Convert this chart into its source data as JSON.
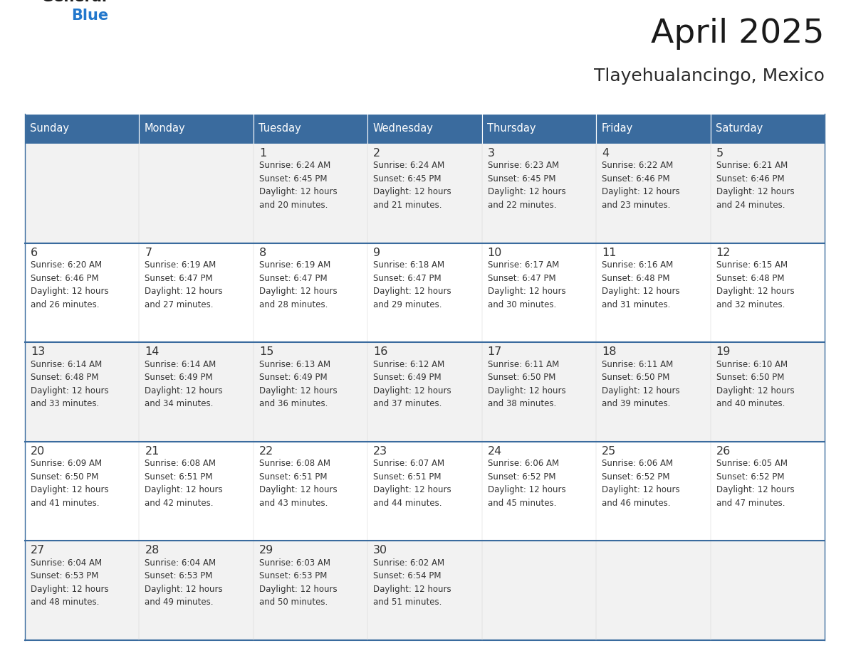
{
  "title": "April 2025",
  "subtitle": "Tlayehualancingo, Mexico",
  "header_color": "#3a6b9e",
  "header_text_color": "#ffffff",
  "cell_bg_even": "#f2f2f2",
  "cell_bg_odd": "#ffffff",
  "row_border_color": "#3a6b9e",
  "text_color": "#333333",
  "days_of_week": [
    "Sunday",
    "Monday",
    "Tuesday",
    "Wednesday",
    "Thursday",
    "Friday",
    "Saturday"
  ],
  "logo_general_color": "#1a1a1a",
  "logo_blue_color": "#2277cc",
  "title_color": "#1a1a1a",
  "subtitle_color": "#2a2a2a",
  "weeks": [
    [
      {
        "day": "",
        "sunrise": "",
        "sunset": "",
        "daylight1": "",
        "daylight2": ""
      },
      {
        "day": "",
        "sunrise": "",
        "sunset": "",
        "daylight1": "",
        "daylight2": ""
      },
      {
        "day": "1",
        "sunrise": "Sunrise: 6:24 AM",
        "sunset": "Sunset: 6:45 PM",
        "daylight1": "Daylight: 12 hours",
        "daylight2": "and 20 minutes."
      },
      {
        "day": "2",
        "sunrise": "Sunrise: 6:24 AM",
        "sunset": "Sunset: 6:45 PM",
        "daylight1": "Daylight: 12 hours",
        "daylight2": "and 21 minutes."
      },
      {
        "day": "3",
        "sunrise": "Sunrise: 6:23 AM",
        "sunset": "Sunset: 6:45 PM",
        "daylight1": "Daylight: 12 hours",
        "daylight2": "and 22 minutes."
      },
      {
        "day": "4",
        "sunrise": "Sunrise: 6:22 AM",
        "sunset": "Sunset: 6:46 PM",
        "daylight1": "Daylight: 12 hours",
        "daylight2": "and 23 minutes."
      },
      {
        "day": "5",
        "sunrise": "Sunrise: 6:21 AM",
        "sunset": "Sunset: 6:46 PM",
        "daylight1": "Daylight: 12 hours",
        "daylight2": "and 24 minutes."
      }
    ],
    [
      {
        "day": "6",
        "sunrise": "Sunrise: 6:20 AM",
        "sunset": "Sunset: 6:46 PM",
        "daylight1": "Daylight: 12 hours",
        "daylight2": "and 26 minutes."
      },
      {
        "day": "7",
        "sunrise": "Sunrise: 6:19 AM",
        "sunset": "Sunset: 6:47 PM",
        "daylight1": "Daylight: 12 hours",
        "daylight2": "and 27 minutes."
      },
      {
        "day": "8",
        "sunrise": "Sunrise: 6:19 AM",
        "sunset": "Sunset: 6:47 PM",
        "daylight1": "Daylight: 12 hours",
        "daylight2": "and 28 minutes."
      },
      {
        "day": "9",
        "sunrise": "Sunrise: 6:18 AM",
        "sunset": "Sunset: 6:47 PM",
        "daylight1": "Daylight: 12 hours",
        "daylight2": "and 29 minutes."
      },
      {
        "day": "10",
        "sunrise": "Sunrise: 6:17 AM",
        "sunset": "Sunset: 6:47 PM",
        "daylight1": "Daylight: 12 hours",
        "daylight2": "and 30 minutes."
      },
      {
        "day": "11",
        "sunrise": "Sunrise: 6:16 AM",
        "sunset": "Sunset: 6:48 PM",
        "daylight1": "Daylight: 12 hours",
        "daylight2": "and 31 minutes."
      },
      {
        "day": "12",
        "sunrise": "Sunrise: 6:15 AM",
        "sunset": "Sunset: 6:48 PM",
        "daylight1": "Daylight: 12 hours",
        "daylight2": "and 32 minutes."
      }
    ],
    [
      {
        "day": "13",
        "sunrise": "Sunrise: 6:14 AM",
        "sunset": "Sunset: 6:48 PM",
        "daylight1": "Daylight: 12 hours",
        "daylight2": "and 33 minutes."
      },
      {
        "day": "14",
        "sunrise": "Sunrise: 6:14 AM",
        "sunset": "Sunset: 6:49 PM",
        "daylight1": "Daylight: 12 hours",
        "daylight2": "and 34 minutes."
      },
      {
        "day": "15",
        "sunrise": "Sunrise: 6:13 AM",
        "sunset": "Sunset: 6:49 PM",
        "daylight1": "Daylight: 12 hours",
        "daylight2": "and 36 minutes."
      },
      {
        "day": "16",
        "sunrise": "Sunrise: 6:12 AM",
        "sunset": "Sunset: 6:49 PM",
        "daylight1": "Daylight: 12 hours",
        "daylight2": "and 37 minutes."
      },
      {
        "day": "17",
        "sunrise": "Sunrise: 6:11 AM",
        "sunset": "Sunset: 6:50 PM",
        "daylight1": "Daylight: 12 hours",
        "daylight2": "and 38 minutes."
      },
      {
        "day": "18",
        "sunrise": "Sunrise: 6:11 AM",
        "sunset": "Sunset: 6:50 PM",
        "daylight1": "Daylight: 12 hours",
        "daylight2": "and 39 minutes."
      },
      {
        "day": "19",
        "sunrise": "Sunrise: 6:10 AM",
        "sunset": "Sunset: 6:50 PM",
        "daylight1": "Daylight: 12 hours",
        "daylight2": "and 40 minutes."
      }
    ],
    [
      {
        "day": "20",
        "sunrise": "Sunrise: 6:09 AM",
        "sunset": "Sunset: 6:50 PM",
        "daylight1": "Daylight: 12 hours",
        "daylight2": "and 41 minutes."
      },
      {
        "day": "21",
        "sunrise": "Sunrise: 6:08 AM",
        "sunset": "Sunset: 6:51 PM",
        "daylight1": "Daylight: 12 hours",
        "daylight2": "and 42 minutes."
      },
      {
        "day": "22",
        "sunrise": "Sunrise: 6:08 AM",
        "sunset": "Sunset: 6:51 PM",
        "daylight1": "Daylight: 12 hours",
        "daylight2": "and 43 minutes."
      },
      {
        "day": "23",
        "sunrise": "Sunrise: 6:07 AM",
        "sunset": "Sunset: 6:51 PM",
        "daylight1": "Daylight: 12 hours",
        "daylight2": "and 44 minutes."
      },
      {
        "day": "24",
        "sunrise": "Sunrise: 6:06 AM",
        "sunset": "Sunset: 6:52 PM",
        "daylight1": "Daylight: 12 hours",
        "daylight2": "and 45 minutes."
      },
      {
        "day": "25",
        "sunrise": "Sunrise: 6:06 AM",
        "sunset": "Sunset: 6:52 PM",
        "daylight1": "Daylight: 12 hours",
        "daylight2": "and 46 minutes."
      },
      {
        "day": "26",
        "sunrise": "Sunrise: 6:05 AM",
        "sunset": "Sunset: 6:52 PM",
        "daylight1": "Daylight: 12 hours",
        "daylight2": "and 47 minutes."
      }
    ],
    [
      {
        "day": "27",
        "sunrise": "Sunrise: 6:04 AM",
        "sunset": "Sunset: 6:53 PM",
        "daylight1": "Daylight: 12 hours",
        "daylight2": "and 48 minutes."
      },
      {
        "day": "28",
        "sunrise": "Sunrise: 6:04 AM",
        "sunset": "Sunset: 6:53 PM",
        "daylight1": "Daylight: 12 hours",
        "daylight2": "and 49 minutes."
      },
      {
        "day": "29",
        "sunrise": "Sunrise: 6:03 AM",
        "sunset": "Sunset: 6:53 PM",
        "daylight1": "Daylight: 12 hours",
        "daylight2": "and 50 minutes."
      },
      {
        "day": "30",
        "sunrise": "Sunrise: 6:02 AM",
        "sunset": "Sunset: 6:54 PM",
        "daylight1": "Daylight: 12 hours",
        "daylight2": "and 51 minutes."
      },
      {
        "day": "",
        "sunrise": "",
        "sunset": "",
        "daylight1": "",
        "daylight2": ""
      },
      {
        "day": "",
        "sunrise": "",
        "sunset": "",
        "daylight1": "",
        "daylight2": ""
      },
      {
        "day": "",
        "sunrise": "",
        "sunset": "",
        "daylight1": "",
        "daylight2": ""
      }
    ]
  ]
}
